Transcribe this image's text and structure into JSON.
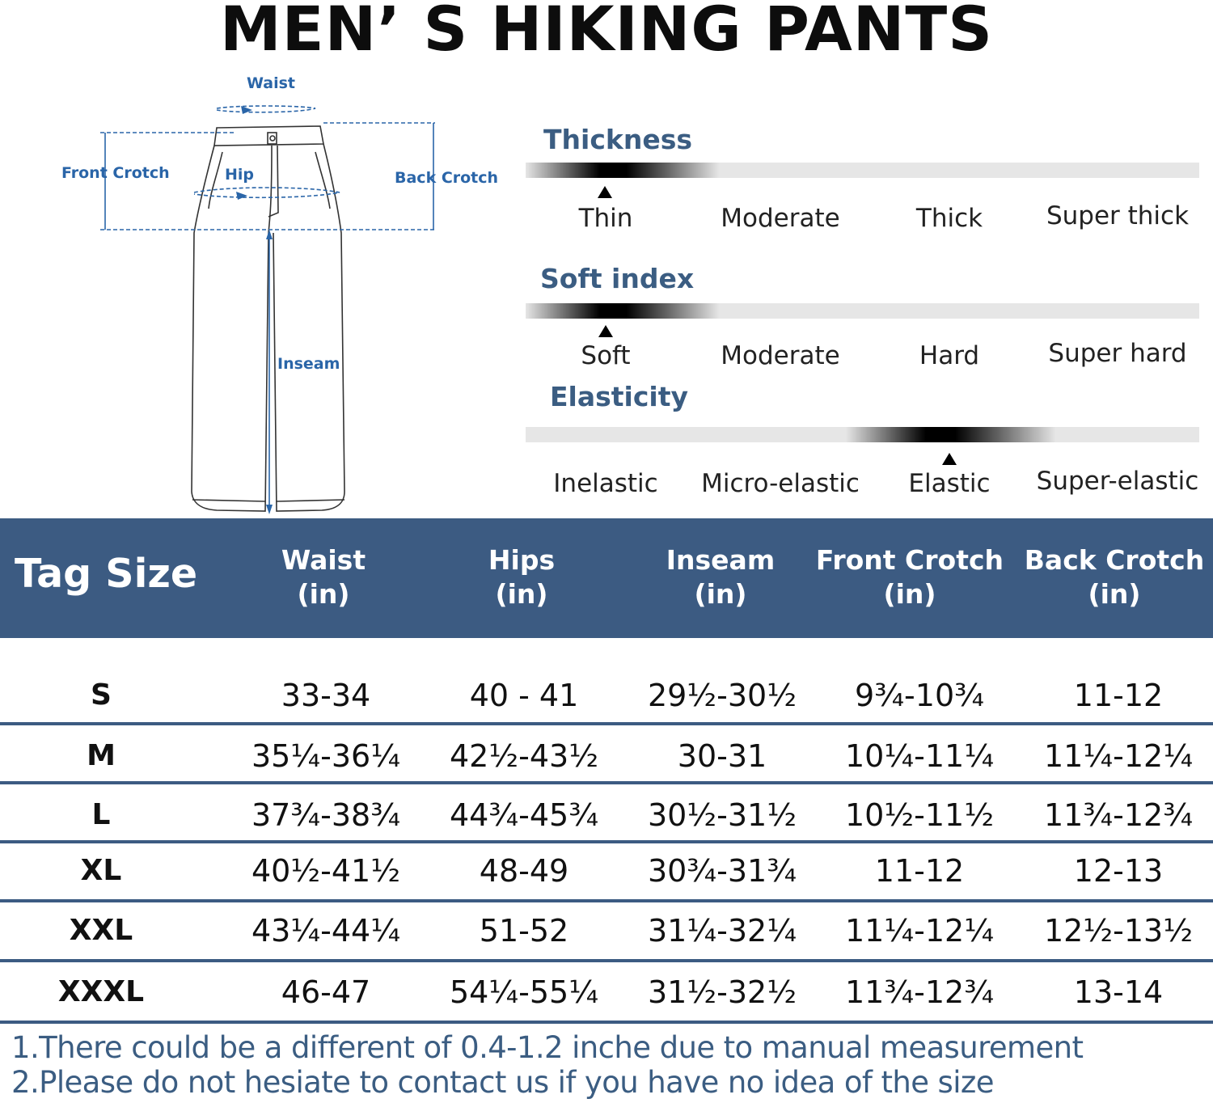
{
  "title": "MEN’ S HIKING PANTS",
  "diagram": {
    "labels": {
      "waist": "Waist",
      "front_crotch": "Front Crotch",
      "hip": "Hip",
      "back_crotch": "Back Crotch",
      "inseam": "Inseam"
    },
    "line_color": "#2a65a8"
  },
  "properties": [
    {
      "title": "Thickness",
      "options": [
        "Thin",
        "Moderate",
        "Thick",
        "Super thick"
      ],
      "selected_index": 0
    },
    {
      "title": "Soft index",
      "options": [
        "Soft",
        "Moderate",
        "Hard",
        "Super hard"
      ],
      "selected_index": 0
    },
    {
      "title": "Elasticity",
      "options": [
        "Inelastic",
        "Micro-elastic",
        "Elastic",
        "Super-elastic"
      ],
      "selected_index": 2
    }
  ],
  "table": {
    "header_color": "#3c5b82",
    "headers": [
      {
        "line1": "Tag Size",
        "line2": ""
      },
      {
        "line1": "Waist",
        "line2": "(in)"
      },
      {
        "line1": "Hips",
        "line2": "(in)"
      },
      {
        "line1": "Inseam",
        "line2": "(in)"
      },
      {
        "line1": "Front Crotch",
        "line2": "(in)"
      },
      {
        "line1": "Back Crotch",
        "line2": "(in)"
      }
    ],
    "rows": [
      [
        "S",
        "33-34",
        "40 - 41",
        "29½-30½",
        "9¾-10¾",
        "11-12"
      ],
      [
        "M",
        "35¼-36¼",
        "42½-43½",
        "30-31",
        "10¼-11¼",
        "11¼-12¼"
      ],
      [
        "L",
        "37¾-38¾",
        "44¾-45¾",
        "30½-31½",
        "10½-11½",
        "11¾-12¾"
      ],
      [
        "XL",
        "40½-41½",
        "48-49",
        "30¾-31¾",
        "11-12",
        "12-13"
      ],
      [
        "XXL",
        "43¼-44¼",
        "51-52",
        "31¼-32¼",
        "11¼-12¼",
        "12½-13½"
      ],
      [
        "XXXL",
        "46-47",
        "54¼-55¼",
        "31½-32½",
        "11¾-12¾",
        "13-14"
      ]
    ]
  },
  "notes": [
    "1.There could be a different of 0.4-1.2 inche due to manual measurement",
    "2.Please do not hesiate to contact us if you have no idea of the size"
  ]
}
